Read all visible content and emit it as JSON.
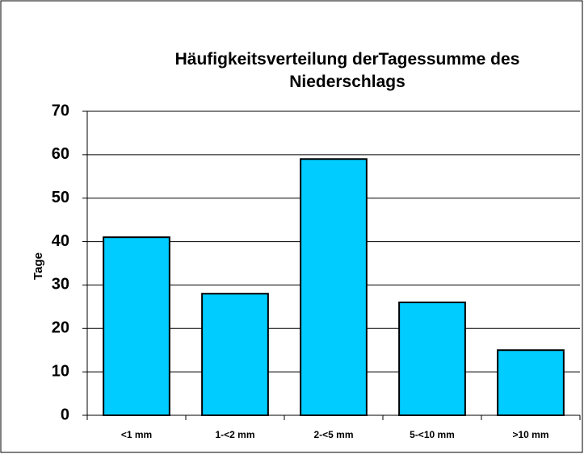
{
  "chart_data": {
    "type": "bar",
    "title": "Häufigkeitsverteilung derTagessumme des Niederschlags",
    "ylabel": "Tage",
    "categories": [
      "<1 mm",
      "1-<2 mm",
      "2-<5 mm",
      "5-<10 mm",
      ">10 mm"
    ],
    "values": [
      41,
      28,
      59,
      26,
      15
    ],
    "color": "#00ccff",
    "ylim": [
      0,
      70
    ],
    "yticks": [
      0,
      10,
      20,
      30,
      40,
      50,
      60,
      70
    ],
    "grid": true
  }
}
